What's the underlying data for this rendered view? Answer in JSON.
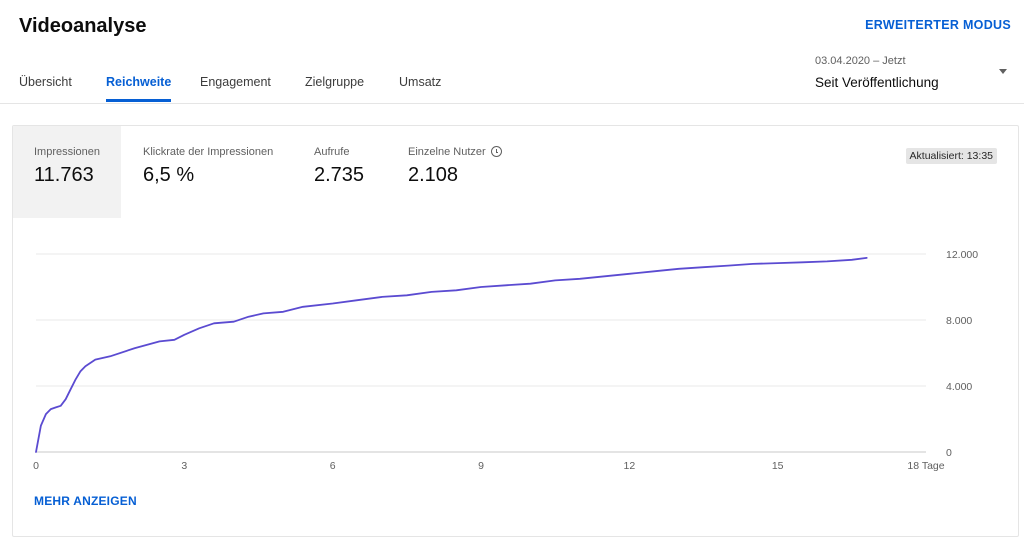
{
  "header": {
    "title": "Videoanalyse",
    "advanced_mode_label": "ERWEITERTER MODUS"
  },
  "tabs": [
    {
      "label": "Übersicht",
      "active": false
    },
    {
      "label": "Reichweite",
      "active": true
    },
    {
      "label": "Engagement",
      "active": false
    },
    {
      "label": "Zielgruppe",
      "active": false
    },
    {
      "label": "Umsatz",
      "active": false
    }
  ],
  "date_picker": {
    "range": "03.04.2020 – Jetzt",
    "label": "Seit Veröffentlichung"
  },
  "metrics": [
    {
      "label": "Impressionen",
      "value": "11.763",
      "selected": true
    },
    {
      "label": "Klickrate der Impressionen",
      "value": "6,5 %",
      "selected": false
    },
    {
      "label": "Aufrufe",
      "value": "2.735",
      "selected": false
    },
    {
      "label": "Einzelne Nutzer",
      "value": "2.108",
      "selected": false,
      "icon": "clock-icon"
    }
  ],
  "updated_badge": "Aktualisiert: 13:35",
  "show_more_label": "MEHR ANZEIGEN",
  "colors": {
    "accent": "#065fd4",
    "line": "#5b4bd1"
  },
  "chart_data": {
    "type": "line",
    "title": "",
    "xlabel": "",
    "ylabel": "",
    "x_ticks": [
      "0",
      "3",
      "6",
      "9",
      "12",
      "15",
      "18 Tage"
    ],
    "y_ticks": [
      "0",
      "4.000",
      "8.000",
      "12.000"
    ],
    "xlim": [
      0,
      18
    ],
    "ylim": [
      0,
      12000
    ],
    "grid": true,
    "series": [
      {
        "x": [
          0,
          0.1,
          0.2,
          0.3,
          0.4,
          0.5,
          0.6,
          0.7,
          0.8,
          0.9,
          1.0,
          1.2,
          1.5,
          2.0,
          2.5,
          2.8,
          3.0,
          3.3,
          3.6,
          4.0,
          4.3,
          4.6,
          5.0,
          5.4,
          6.0,
          6.5,
          7.0,
          7.5,
          8.0,
          8.5,
          9.0,
          9.5,
          10.0,
          10.5,
          11.0,
          11.5,
          12.0,
          12.5,
          13.0,
          13.5,
          14.0,
          14.5,
          15.0,
          15.5,
          16.0,
          16.5,
          16.8
        ],
        "y": [
          0,
          1600,
          2300,
          2600,
          2700,
          2800,
          3200,
          3800,
          4400,
          4900,
          5200,
          5600,
          5800,
          6300,
          6700,
          6800,
          7100,
          7500,
          7800,
          7900,
          8200,
          8400,
          8500,
          8800,
          9000,
          9200,
          9400,
          9500,
          9700,
          9800,
          10000,
          10100,
          10200,
          10400,
          10500,
          10650,
          10800,
          10950,
          11100,
          11200,
          11300,
          11400,
          11450,
          11500,
          11550,
          11650,
          11763
        ]
      }
    ]
  }
}
